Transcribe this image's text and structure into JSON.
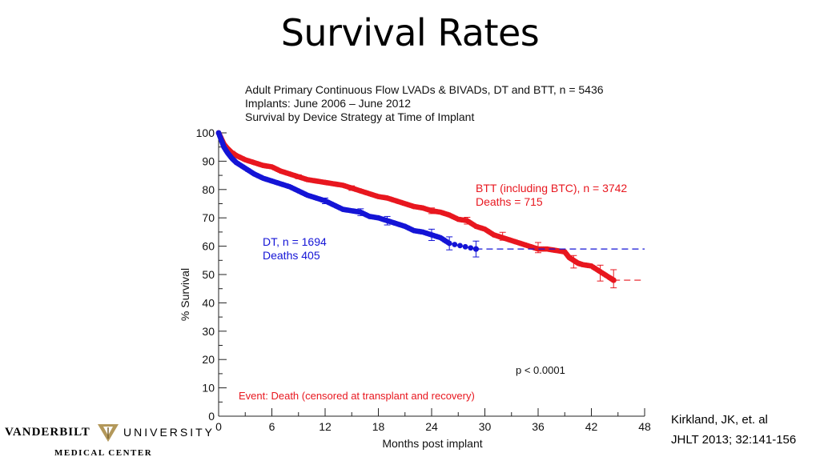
{
  "slide": {
    "title": "Survival Rates",
    "citation_line1": "Kirkland, JK, et. al",
    "citation_line2": "JHLT 2013; 32:141-156"
  },
  "logo": {
    "left_word": "VANDERBILT",
    "right_word": "UNIVERSITY",
    "sub": "MEDICAL CENTER",
    "gold": "#b3985a"
  },
  "chart_data": {
    "type": "line",
    "title_lines": [
      "Adult Primary Continuous Flow LVADs & BIVADs, DT and BTT, n = 5436",
      "Implants: June 2006 – June 2012",
      "Survival by Device Strategy at Time of Implant"
    ],
    "xlabel": "Months post implant",
    "ylabel": "% Survival",
    "xlim": [
      0,
      48
    ],
    "ylim": [
      0,
      100
    ],
    "xticks": [
      0,
      6,
      12,
      18,
      24,
      30,
      36,
      42,
      48
    ],
    "yticks": [
      0,
      10,
      20,
      30,
      40,
      50,
      60,
      70,
      80,
      90,
      100
    ],
    "series": [
      {
        "name": "BTT (including BTC), n = 3742",
        "label_line2": "Deaths = 715",
        "color": "#e8171f",
        "x": [
          0,
          0.3,
          0.6,
          1,
          1.5,
          2,
          3,
          4,
          5,
          6,
          7,
          8,
          9,
          10,
          11,
          12,
          13,
          14,
          15,
          16,
          17,
          18,
          19,
          20,
          21,
          22,
          23,
          24,
          25,
          26,
          27,
          28,
          29,
          30,
          31,
          32,
          33,
          34,
          35,
          36,
          37,
          38,
          39,
          39.5,
          40,
          40.5,
          41,
          42,
          43,
          44,
          44.5
        ],
        "y": [
          100,
          98,
          96,
          94.5,
          93,
          92,
          90.5,
          89.5,
          88.5,
          88,
          86.5,
          85.5,
          84.5,
          83.5,
          83,
          82.5,
          82,
          81.5,
          80.5,
          79.5,
          78.5,
          77.5,
          77,
          76,
          75,
          74,
          73.5,
          72.5,
          72,
          71,
          69.5,
          69,
          67,
          66,
          64,
          63,
          62,
          61,
          60,
          59,
          59,
          58.5,
          58,
          56,
          55,
          54,
          53.5,
          53,
          51,
          49,
          48
        ],
        "errorbars": [
          [
            1.5,
            93,
            0.5
          ],
          [
            9,
            84.5,
            0.7
          ],
          [
            15,
            80.5,
            0.8
          ],
          [
            24,
            72.5,
            1
          ],
          [
            28,
            69,
            1.2
          ],
          [
            32,
            63.5,
            1.4
          ],
          [
            36,
            59.5,
            1.8
          ],
          [
            40,
            54.5,
            2.2
          ],
          [
            43,
            50.5,
            2.8
          ],
          [
            44.5,
            48.5,
            3.2
          ]
        ],
        "censor_line": {
          "from": 44.5,
          "to": 48,
          "y": 48
        }
      },
      {
        "name": "DT, n = 1694",
        "label_line2": "Deaths  405",
        "color": "#1414d6",
        "x": [
          0,
          0.3,
          0.6,
          1,
          1.5,
          2,
          3,
          4,
          5,
          6,
          7,
          8,
          9,
          10,
          11,
          12,
          13,
          14,
          15,
          16,
          17,
          18,
          19,
          20,
          21,
          22,
          23,
          24,
          25,
          26,
          29
        ],
        "y": [
          100,
          97.5,
          95,
          93,
          91,
          89.5,
          87.5,
          85.5,
          84,
          83,
          82,
          81,
          79.5,
          78,
          77,
          76,
          74.5,
          73,
          72.5,
          72,
          70.5,
          70,
          69,
          68,
          67,
          65.5,
          65,
          64,
          63,
          61,
          59
        ],
        "errorbars": [
          [
            12,
            76,
            1
          ],
          [
            16,
            72,
            1.2
          ],
          [
            19,
            69,
            1.5
          ],
          [
            24,
            64,
            2
          ],
          [
            26,
            61,
            2.3
          ],
          [
            29,
            59,
            2.8
          ]
        ],
        "censor_line": {
          "from": 29,
          "to": 48,
          "y": 59
        }
      }
    ],
    "annotations": {
      "p_value": "p < 0.0001",
      "event": "Event:  Death (censored at transplant and recovery)"
    }
  }
}
